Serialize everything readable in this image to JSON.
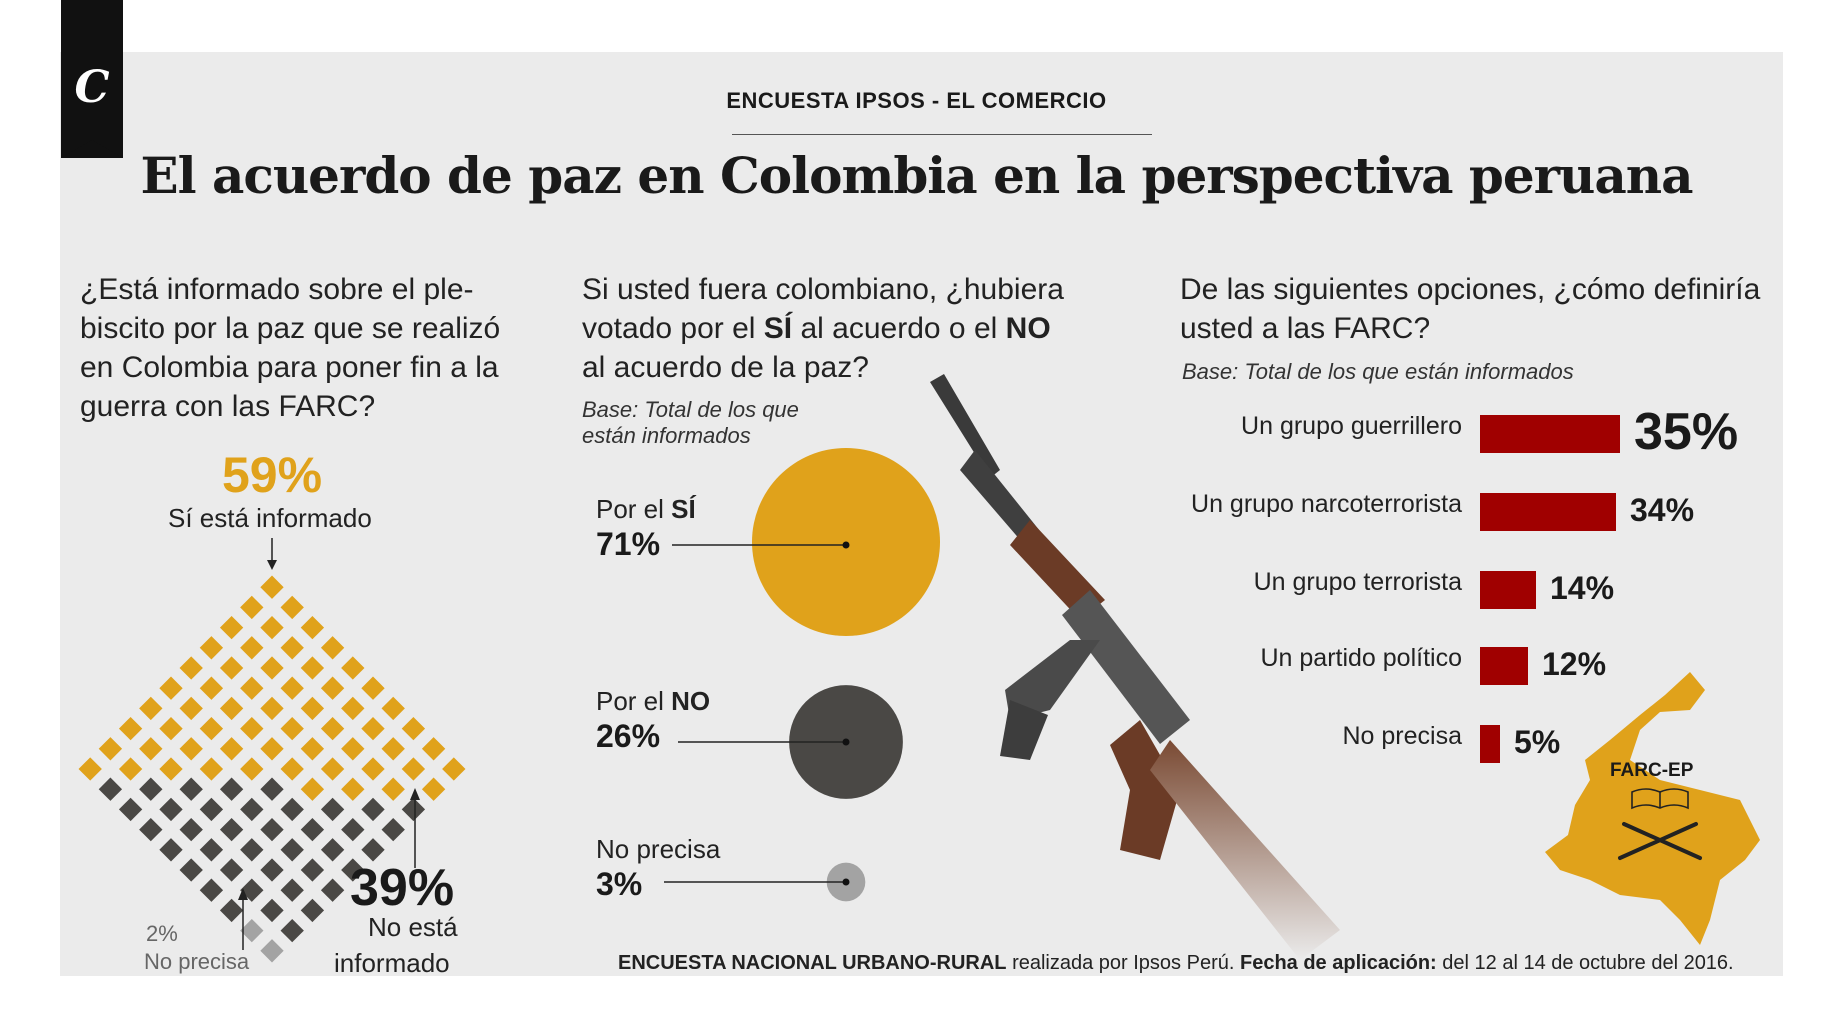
{
  "header": {
    "kicker": "ENCUESTA IPSOS - EL COMERCIO",
    "title": "El acuerdo de paz en Colombia en la perspectiva peruana",
    "logo_letter": "C"
  },
  "colors": {
    "yellow": "#e0a21b",
    "dark": "#4a4845",
    "gray": "#a3a3a3",
    "red": "#a00000"
  },
  "chart_data": [
    {
      "type": "waffle",
      "question": [
        "¿Está informado sobre el ple-",
        "biscito por la paz que se realizó",
        "en Colombia para poner fin a la",
        "guerra con las FARC?"
      ],
      "categories": [
        "Sí está informado",
        "No está informado",
        "No precisa"
      ],
      "values": [
        59,
        39,
        2
      ],
      "labels": {
        "yes_pct": "59%",
        "yes_label": "Sí está informado",
        "no_pct": "39%",
        "no_label_1": "No está",
        "no_label_2": "informado",
        "np_pct": "2%",
        "np_label": "No precisa"
      }
    },
    {
      "type": "bubble",
      "question": [
        "Si usted fuera colombiano, ¿hubiera",
        "votado por el",
        "SÍ",
        "al acuerdo o el",
        "NO",
        "al acuerdo de la paz?"
      ],
      "base": [
        "Base: Total de los que",
        "están informados"
      ],
      "categories": [
        "Por el SÍ",
        "Por el NO",
        "No precisa"
      ],
      "values": [
        71,
        26,
        3
      ],
      "items": [
        {
          "prefix": "Por el ",
          "strong": "SÍ",
          "pct": "71%"
        },
        {
          "prefix": "Por el ",
          "strong": "NO",
          "pct": "26%"
        },
        {
          "prefix": "No precisa",
          "strong": "",
          "pct": "3%"
        }
      ]
    },
    {
      "type": "bar",
      "question": [
        "De las siguientes opciones, ¿cómo definiría",
        "usted a las FARC?"
      ],
      "base": "Base: Total de los que están informados",
      "categories": [
        "Un grupo guerrillero",
        "Un grupo narcoterrorista",
        "Un grupo terrorista",
        "Un partido político",
        "No precisa"
      ],
      "values": [
        35,
        34,
        14,
        12,
        5
      ],
      "pct_labels": [
        "35%",
        "34%",
        "14%",
        "12%",
        "5%"
      ]
    }
  ],
  "map": {
    "label": "FARC-EP"
  },
  "footer": {
    "strong1": "ENCUESTA NACIONAL URBANO-RURAL",
    "text1": " realizada por Ipsos Perú. ",
    "strong2": "Fecha de aplicación:",
    "text2": "  del 12 al 14 de octubre del 2016."
  }
}
